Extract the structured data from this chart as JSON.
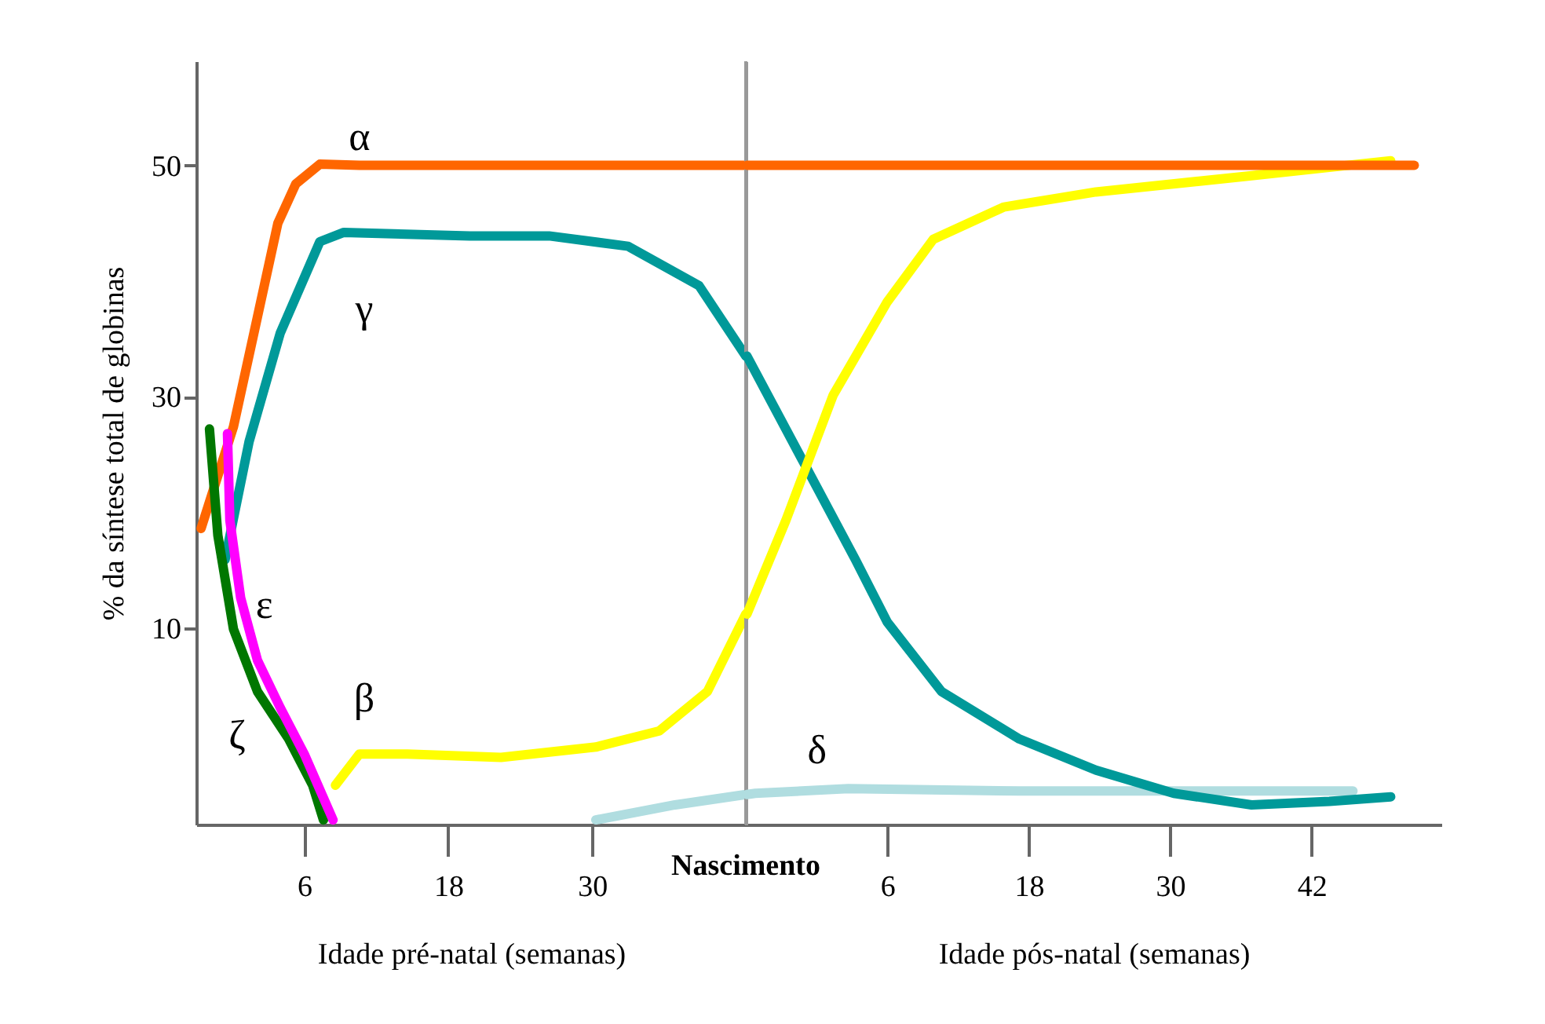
{
  "chart_data": [
    {
      "type": "line",
      "ylabel": "% da síntese total de globinas",
      "xlabel": "Idade pré-natal (semanas)",
      "xlim": [
        -3,
        42.8
      ],
      "ylim": [
        -7,
        59
      ],
      "xticks": [
        6,
        18,
        30
      ],
      "yticks": [
        10,
        30,
        50
      ],
      "grid": false,
      "series": [
        {
          "color": "#b0dde0",
          "x": [
            30.3,
            36.9,
            42.8
          ],
          "values": [
            -6.6,
            -5.3,
            -4.4
          ]
        },
        {
          "name": "γ",
          "color": "#009999",
          "x": [
            -0.6,
            1.4,
            4,
            7.3,
            9.3,
            19.8,
            26.4,
            33,
            38.9,
            42.8
          ],
          "values": [
            15.9,
            26.1,
            35.5,
            43.4,
            44.2,
            43.9,
            43.9,
            43,
            39.6,
            33.5
          ]
        },
        {
          "name": "β",
          "color": "#ffff00",
          "x": [
            8.6,
            10.6,
            14.6,
            22.4,
            30.3,
            35.6,
            39.6,
            42.8
          ],
          "values": [
            -3.6,
            -0.9,
            -0.9,
            -1.2,
            -0.3,
            1.1,
            4.5,
            11.2
          ]
        },
        {
          "name": "α",
          "color": "#ff6600",
          "x": [
            -2.6,
            0.1,
            2.1,
            3.8,
            5.3,
            7.3,
            10.6,
            42.8
          ],
          "values": [
            18.6,
            27.4,
            36.9,
            45,
            48.4,
            50.1,
            50,
            50
          ]
        },
        {
          "name": "ζ",
          "color": "#007700",
          "x": [
            -1.9,
            -1.2,
            0.1,
            2.1,
            4.7,
            6.7,
            7.6
          ],
          "values": [
            27.2,
            18,
            9.9,
            4.5,
            0.4,
            -3.6,
            -6.6
          ]
        },
        {
          "name": "ε",
          "color": "#ff00ff",
          "x": [
            -0.4,
            -0.2,
            0.7,
            2.1,
            4,
            6,
            8.4
          ],
          "values": [
            26.8,
            19.3,
            12.6,
            7.2,
            3.1,
            -0.9,
            -6.6
          ]
        }
      ],
      "ref_lines": [
        {
          "axis": "x",
          "value": 42.8,
          "label": "Nascimento",
          "color": "#999999"
        }
      ]
    },
    {
      "type": "line",
      "xlabel": "Idade pós-natal (semanas)",
      "xlim": [
        -6,
        53
      ],
      "ylim": [
        -7,
        59
      ],
      "xticks": [
        6,
        18,
        30,
        42
      ],
      "grid": false,
      "tick_labels": "x",
      "series": [
        {
          "name": "δ",
          "color": "#b0dde0",
          "x": [
            -5.9,
            -5.2,
            2.7,
            17.2,
            45.5
          ],
          "values": [
            -4.4,
            -4.3,
            -3.9,
            -4.1,
            -4.1
          ]
        },
        {
          "color": "#009999",
          "x": [
            -5.9,
            -1.3,
            3.3,
            6,
            10.6,
            17.2,
            23.7,
            30.3,
            36.9,
            43.5,
            48.7
          ],
          "values": [
            33.5,
            24.7,
            15.9,
            10.5,
            4.5,
            0.4,
            -2.3,
            -4.3,
            -5.3,
            -5,
            -4.6
          ]
        },
        {
          "color": "#ffff00",
          "x": [
            -5.9,
            -2.6,
            1.4,
            6,
            9.9,
            15.9,
            23.7,
            36.9,
            48.7
          ],
          "values": [
            11.2,
            19.3,
            30.1,
            38.2,
            43.6,
            46.4,
            47.7,
            49.1,
            50.4
          ]
        },
        {
          "color": "#ff6600",
          "x": [
            -5.9,
            50.7
          ],
          "values": [
            50,
            50
          ]
        }
      ]
    }
  ]
}
